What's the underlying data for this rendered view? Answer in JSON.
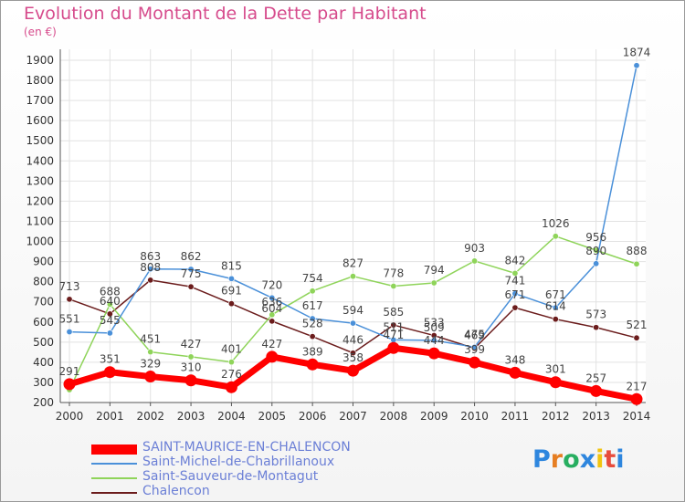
{
  "title": "Evolution du Montant de la Dette par Habitant",
  "unit": "(en €)",
  "brand": {
    "letters": [
      "P",
      "r",
      "o",
      "x",
      "i",
      "t",
      "i"
    ],
    "colors": [
      "#2e86de",
      "#e67e22",
      "#27ae60",
      "#2e86de",
      "#f1c40f",
      "#e74c3c",
      "#2e86de"
    ]
  },
  "chart_data": {
    "type": "line",
    "x": [
      2000,
      2001,
      2002,
      2003,
      2004,
      2005,
      2006,
      2007,
      2008,
      2009,
      2010,
      2011,
      2012,
      2013,
      2014
    ],
    "yticks": [
      200,
      300,
      400,
      500,
      600,
      700,
      800,
      900,
      1000,
      1100,
      1200,
      1300,
      1400,
      1500,
      1600,
      1700,
      1800,
      1900
    ],
    "ylim": [
      200,
      1900
    ],
    "grid": true,
    "legend_position": "bottom-left",
    "series": [
      {
        "name": "Chalencon",
        "color": "#6b1c1c",
        "width": 1.5,
        "values": [
          713,
          640,
          808,
          775,
          691,
          604,
          528,
          446,
          585,
          533,
          469,
          671,
          614,
          573,
          521
        ],
        "labels": [
          "713",
          "640",
          "808",
          "775",
          "691",
          "604",
          "528",
          "446",
          "585",
          "533",
          "469",
          "671",
          "614",
          "573",
          "521"
        ]
      },
      {
        "name": "Saint-Sauveur-de-Montagut",
        "color": "#8fd45a",
        "width": 1.5,
        "values": [
          263,
          688,
          451,
          427,
          401,
          636,
          754,
          827,
          778,
          794,
          903,
          842,
          1026,
          956,
          888
        ],
        "labels": [
          "",
          "688",
          "451",
          "427",
          "401",
          "636",
          "754",
          "827",
          "778",
          "794",
          "903",
          "842",
          "1026",
          "956",
          "888"
        ]
      },
      {
        "name": "Saint-Michel-de-Chabrillanoux",
        "color": "#4a90d9",
        "width": 1.5,
        "values": [
          551,
          545,
          863,
          862,
          815,
          720,
          617,
          594,
          511,
          509,
          475,
          741,
          671,
          890,
          1874
        ],
        "labels": [
          "551",
          "545",
          "863",
          "862",
          "815",
          "720",
          "617",
          "594",
          "511",
          "509",
          "475",
          "741",
          "671",
          "890",
          "1874"
        ]
      },
      {
        "name": "SAINT-MAURICE-EN-CHALENCON",
        "color": "#ff0000",
        "width": 7,
        "values": [
          291,
          351,
          329,
          310,
          276,
          427,
          389,
          358,
          471,
          444,
          399,
          348,
          301,
          257,
          217
        ],
        "labels": [
          "291",
          "351",
          "329",
          "310",
          "276",
          "427",
          "389",
          "358",
          "471",
          "444",
          "399",
          "348",
          "301",
          "257",
          "217"
        ]
      }
    ]
  }
}
